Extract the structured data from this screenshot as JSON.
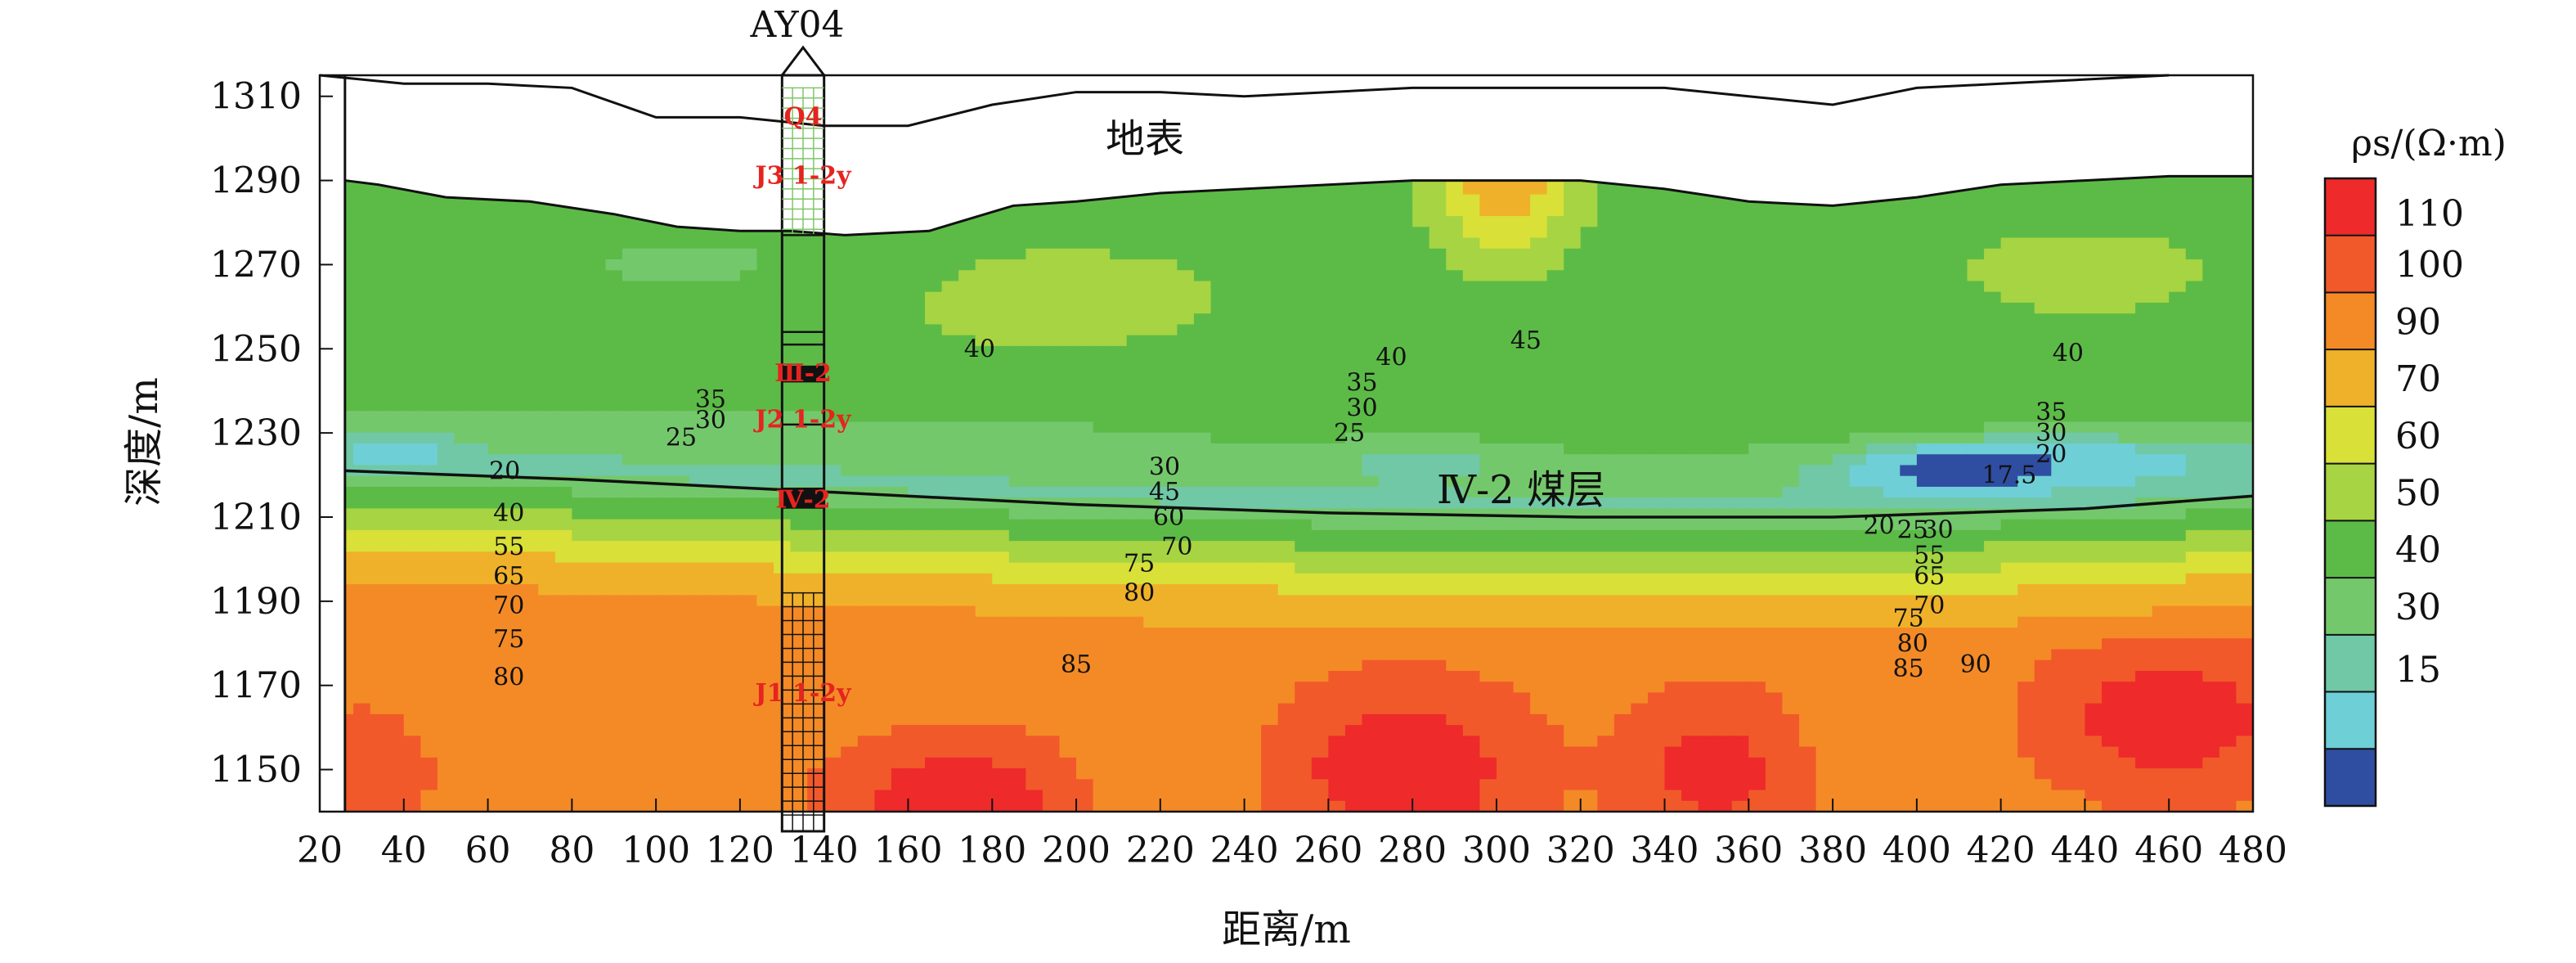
{
  "chart_data": {
    "type": "heatmap",
    "title": "",
    "xlabel": "距离/m",
    "ylabel": "深度/m",
    "xlim": [
      20,
      480
    ],
    "ylim": [
      1140,
      1315
    ],
    "x_ticks": [
      20,
      40,
      60,
      80,
      100,
      120,
      140,
      160,
      180,
      200,
      220,
      240,
      260,
      280,
      300,
      320,
      340,
      360,
      380,
      400,
      420,
      440,
      460,
      480
    ],
    "y_ticks": [
      1150,
      1170,
      1190,
      1210,
      1230,
      1250,
      1270,
      1290,
      1310
    ],
    "colorbar": {
      "title": "ρs/(Ω·m)",
      "ticks": [
        110,
        100,
        90,
        70,
        60,
        50,
        40,
        30,
        15
      ],
      "colors": [
        "#ee2a2b",
        "#f1592a",
        "#f48a26",
        "#f0b12a",
        "#d9e038",
        "#a7d442",
        "#5cbb47",
        "#74c86c",
        "#70c8a6",
        "#6ecfd6",
        "#2f4ea1"
      ]
    },
    "surface_label": "地表",
    "coal_seam_label": "Ⅳ-2 煤层",
    "borehole": {
      "name": "AY04",
      "x_from": 130,
      "x_to": 140,
      "labels": [
        {
          "text": "Q4",
          "depth": 1305
        },
        {
          "text": "J3 1-2y",
          "depth": 1291
        },
        {
          "text": "Ⅲ-2",
          "depth": 1244
        },
        {
          "text": "J2 1-2y",
          "depth": 1233
        },
        {
          "text": "Ⅳ-2",
          "depth": 1214
        },
        {
          "text": "J1 1-2y",
          "depth": 1168
        }
      ]
    },
    "surface_profile": {
      "x": [
        20,
        40,
        60,
        80,
        100,
        120,
        140,
        160,
        180,
        200,
        220,
        240,
        260,
        280,
        300,
        320,
        340,
        360,
        380,
        400,
        420,
        440,
        460
      ],
      "y": [
        1315,
        1313,
        1313,
        1312,
        1305,
        1305,
        1303,
        1303,
        1308,
        1311,
        1311,
        1310,
        1311,
        1312,
        1312,
        1312,
        1312,
        1310,
        1308,
        1312,
        1313,
        1314,
        1315
      ]
    },
    "data_top": {
      "x": [
        26,
        34,
        50,
        70,
        90,
        105,
        120,
        132,
        145,
        165,
        185,
        200,
        220,
        240,
        260,
        280,
        300,
        320,
        340,
        360,
        380,
        400,
        420,
        440,
        460,
        480
      ],
      "y": [
        1290,
        1289,
        1286,
        1285,
        1282,
        1279,
        1278,
        1278,
        1277,
        1278,
        1284,
        1285,
        1287,
        1288,
        1289,
        1290,
        1290,
        1290,
        1288,
        1285,
        1284,
        1286,
        1289,
        1290,
        1291,
        1291
      ]
    },
    "coal_seam": {
      "x": [
        26,
        80,
        140,
        200,
        260,
        320,
        380,
        440,
        480
      ],
      "y": [
        1221,
        1219,
        1216,
        1213,
        1211,
        1210,
        1210,
        1212,
        1215
      ]
    },
    "contour_labels": [
      {
        "x": 64,
        "y": 1221,
        "text": "20"
      },
      {
        "x": 106,
        "y": 1229,
        "text": "25"
      },
      {
        "x": 113,
        "y": 1233,
        "text": "30"
      },
      {
        "x": 113,
        "y": 1238,
        "text": "35"
      },
      {
        "x": 65,
        "y": 1211,
        "text": "40"
      },
      {
        "x": 65,
        "y": 1203,
        "text": "55"
      },
      {
        "x": 65,
        "y": 1196,
        "text": "65"
      },
      {
        "x": 65,
        "y": 1189,
        "text": "70"
      },
      {
        "x": 65,
        "y": 1181,
        "text": "75"
      },
      {
        "x": 65,
        "y": 1172,
        "text": "80"
      },
      {
        "x": 177,
        "y": 1250,
        "text": "40"
      },
      {
        "x": 221,
        "y": 1222,
        "text": "30"
      },
      {
        "x": 221,
        "y": 1216,
        "text": "45"
      },
      {
        "x": 222,
        "y": 1210,
        "text": "60"
      },
      {
        "x": 224,
        "y": 1203,
        "text": "70"
      },
      {
        "x": 215,
        "y": 1199,
        "text": "75"
      },
      {
        "x": 215,
        "y": 1192,
        "text": "80"
      },
      {
        "x": 200,
        "y": 1175,
        "text": "85"
      },
      {
        "x": 265,
        "y": 1230,
        "text": "25"
      },
      {
        "x": 268,
        "y": 1236,
        "text": "30"
      },
      {
        "x": 268,
        "y": 1242,
        "text": "35"
      },
      {
        "x": 275,
        "y": 1248,
        "text": "40"
      },
      {
        "x": 307,
        "y": 1252,
        "text": "45"
      },
      {
        "x": 391,
        "y": 1208,
        "text": "20"
      },
      {
        "x": 399,
        "y": 1207,
        "text": "25"
      },
      {
        "x": 405,
        "y": 1207,
        "text": "30"
      },
      {
        "x": 403,
        "y": 1201,
        "text": "55"
      },
      {
        "x": 403,
        "y": 1196,
        "text": "65"
      },
      {
        "x": 403,
        "y": 1189,
        "text": "70"
      },
      {
        "x": 398,
        "y": 1186,
        "text": "75"
      },
      {
        "x": 399,
        "y": 1180,
        "text": "80"
      },
      {
        "x": 398,
        "y": 1174,
        "text": "85"
      },
      {
        "x": 414,
        "y": 1175,
        "text": "90"
      },
      {
        "x": 422,
        "y": 1220,
        "text": "17.5"
      },
      {
        "x": 432,
        "y": 1225,
        "text": "20"
      },
      {
        "x": 432,
        "y": 1230,
        "text": "30"
      },
      {
        "x": 432,
        "y": 1235,
        "text": "35"
      },
      {
        "x": 436,
        "y": 1249,
        "text": "40"
      }
    ]
  }
}
